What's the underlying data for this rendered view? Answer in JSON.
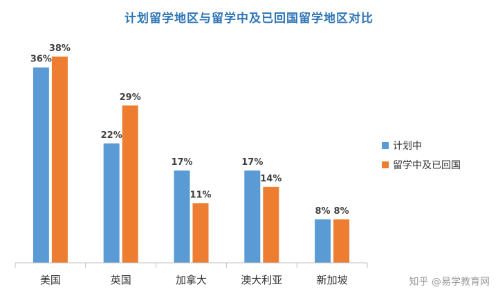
{
  "chart_data": {
    "type": "bar",
    "title": "计划留学地区与留学中及已回国留学地区对比",
    "categories": [
      "美国",
      "英国",
      "加拿大",
      "澳大利亚",
      "新加坡"
    ],
    "series": [
      {
        "name": "计划中",
        "values": [
          36,
          22,
          17,
          17,
          8
        ],
        "labels": [
          "36%",
          "22%",
          "17%",
          "17%",
          "8%"
        ],
        "color": "#5B9BD5"
      },
      {
        "name": "留学中及已回国",
        "values": [
          38,
          29,
          11,
          14,
          8
        ],
        "labels": [
          "38%",
          "29%",
          "11%",
          "14%",
          "8%"
        ],
        "color": "#ED7D31"
      }
    ],
    "ylim": [
      0,
      45
    ],
    "grid": false,
    "legend_position": "right"
  },
  "watermark": "知乎 @易学教育网"
}
